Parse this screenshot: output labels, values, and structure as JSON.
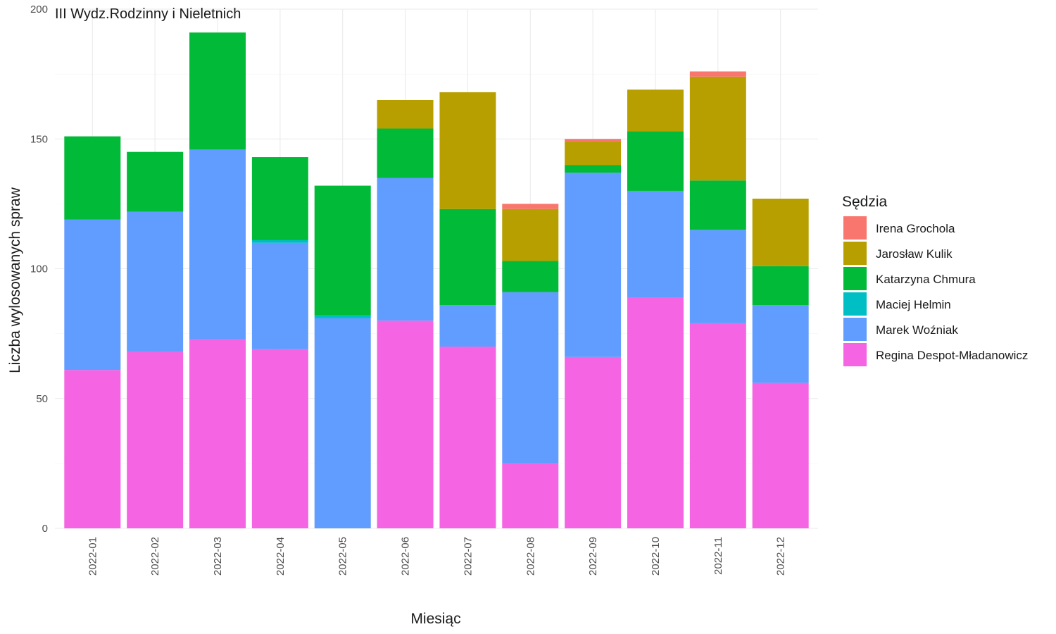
{
  "chart_data": {
    "type": "bar",
    "stacked": true,
    "title": "III Wydz.Rodzinny i Nieletnich",
    "xlabel": "Miesiąc",
    "ylabel": "Liczba wylosowanych spraw",
    "ylim": [
      0,
      200
    ],
    "yticks": [
      0,
      50,
      100,
      150,
      200
    ],
    "grid": true,
    "legend_title": "Sędzia",
    "legend_position": "right",
    "categories": [
      "2022-01",
      "2022-02",
      "2022-03",
      "2022-04",
      "2022-05",
      "2022-06",
      "2022-07",
      "2022-08",
      "2022-09",
      "2022-10",
      "2022-11",
      "2022-12"
    ],
    "series": [
      {
        "name": "Regina Despot-Mładanowicz",
        "color": "#f564e3",
        "values": [
          61,
          68,
          73,
          69,
          0,
          80,
          70,
          25,
          66,
          89,
          79,
          56
        ]
      },
      {
        "name": "Marek Woźniak",
        "color": "#619cff",
        "values": [
          58,
          54,
          73,
          41,
          81,
          55,
          16,
          66,
          71,
          41,
          36,
          30
        ]
      },
      {
        "name": "Maciej Helmin",
        "color": "#00bfc4",
        "values": [
          0,
          0,
          0,
          1,
          1,
          0,
          0,
          0,
          0,
          0,
          0,
          0
        ]
      },
      {
        "name": "Katarzyna Chmura",
        "color": "#00ba38",
        "values": [
          32,
          23,
          45,
          32,
          50,
          19,
          37,
          12,
          3,
          23,
          19,
          15
        ]
      },
      {
        "name": "Jarosław Kulik",
        "color": "#b79f00",
        "values": [
          0,
          0,
          0,
          0,
          0,
          11,
          45,
          20,
          9,
          16,
          40,
          26
        ]
      },
      {
        "name": "Irena Grochola",
        "color": "#f8766d",
        "values": [
          0,
          0,
          0,
          0,
          0,
          0,
          0,
          2,
          1,
          0,
          2,
          0
        ]
      }
    ],
    "legend_order": [
      "Irena Grochola",
      "Jarosław Kulik",
      "Katarzyna Chmura",
      "Maciej Helmin",
      "Marek Woźniak",
      "Regina Despot-Mładanowicz"
    ]
  }
}
